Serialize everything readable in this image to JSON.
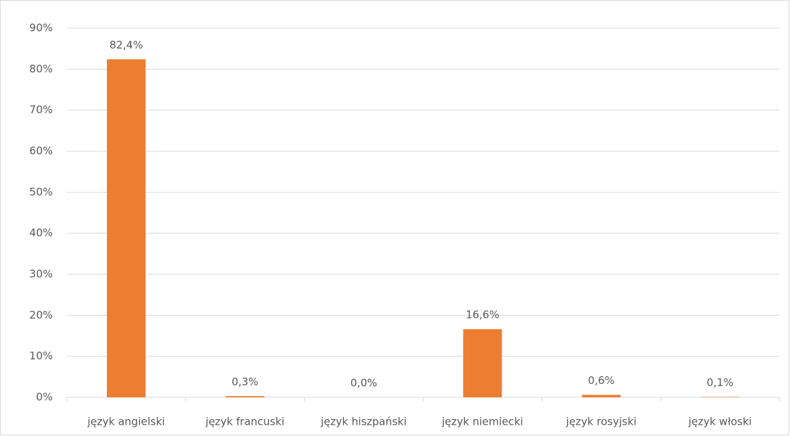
{
  "chart_data": {
    "type": "bar",
    "categories": [
      "język angielski",
      "język francuski",
      "język hiszpański",
      "język niemiecki",
      "język rosyjski",
      "język włoski"
    ],
    "values": [
      82.4,
      0.3,
      0.0,
      16.6,
      0.6,
      0.1
    ],
    "value_labels": [
      "82,4%",
      "0,3%",
      "0,0%",
      "16,6%",
      "0,6%",
      "0,1%"
    ],
    "color": "#ed7d31",
    "ylim": [
      0,
      90
    ],
    "yticks": [
      {
        "value": 0,
        "label": "0%"
      },
      {
        "value": 10,
        "label": "10%"
      },
      {
        "value": 20,
        "label": "20%"
      },
      {
        "value": 30,
        "label": "30%"
      },
      {
        "value": 40,
        "label": "40%"
      },
      {
        "value": 50,
        "label": "50%"
      },
      {
        "value": 60,
        "label": "60%"
      },
      {
        "value": 70,
        "label": "70%"
      },
      {
        "value": 80,
        "label": "80%"
      },
      {
        "value": 90,
        "label": "90%"
      }
    ],
    "grid": true
  }
}
